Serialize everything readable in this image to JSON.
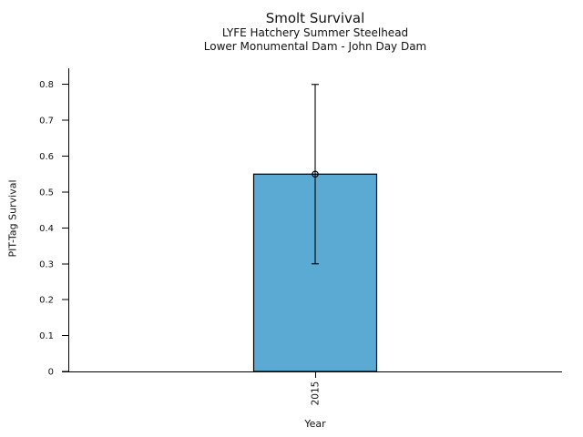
{
  "chart_data": {
    "type": "bar",
    "title": "Smolt Survival",
    "subtitle1": "LYFE Hatchery Summer Steelhead",
    "subtitle2": "Lower Monumental Dam - John Day Dam",
    "xlabel": "Year",
    "ylabel": "PIT-Tag Survival",
    "categories": [
      "2015"
    ],
    "series": [
      {
        "name": "PIT-Tag Survival",
        "values": [
          0.55
        ],
        "error_low": [
          0.3
        ],
        "error_high": [
          0.8
        ]
      }
    ],
    "yticks": [
      0,
      0.1,
      0.2,
      0.3,
      0.4,
      0.5,
      0.6,
      0.7,
      0.8
    ],
    "ytick_labels": [
      "0",
      "0.1",
      "0.2",
      "0.3",
      "0.4",
      "0.5",
      "0.6",
      "0.7",
      "0.8"
    ],
    "ylim": [
      0,
      0.845
    ],
    "grid": false,
    "legend": "none",
    "marker": "open-circle",
    "colors": {
      "bar_fill": "#5AAAD4",
      "bar_edge": "#000000",
      "error_bar": "#000000",
      "marker_edge": "#000000",
      "background": "#FFFFFF",
      "text": "#111111"
    }
  }
}
